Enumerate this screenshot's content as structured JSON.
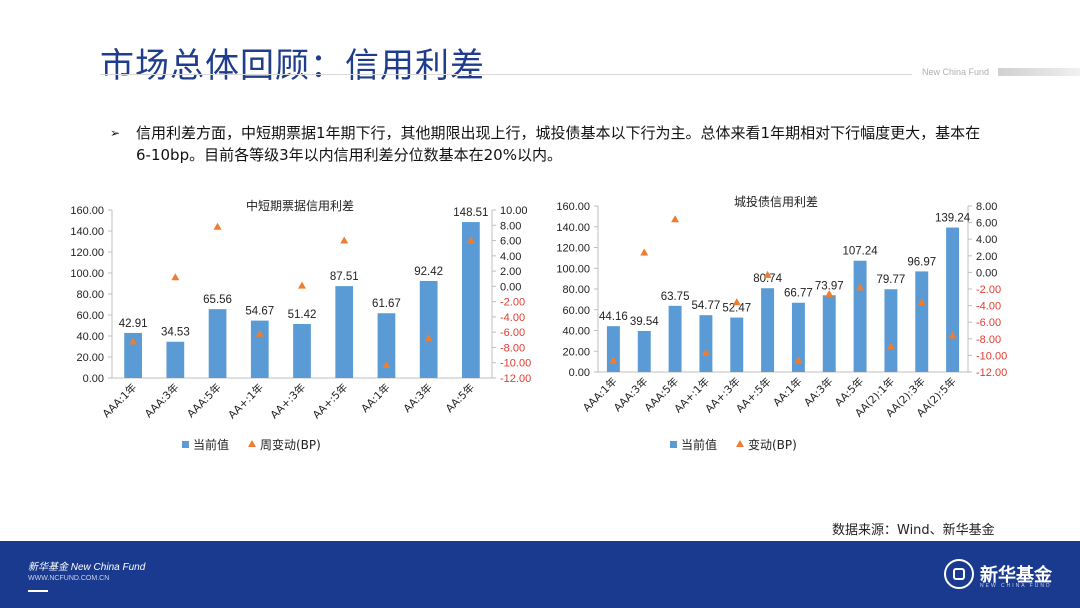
{
  "slide": {
    "title": "市场总体回顾：信用利差",
    "brand_small": "New China Fund",
    "bullet_marker": "➢",
    "bullet": "信用利差方面，中短期票据1年期下行，其他期限出现上行，城投债基本以下行为主。总体来看1年期相对下行幅度更大，基本在6-10bp。目前各等级3年以内信用利差分位数基本在20%以内。",
    "source": "数据来源：Wind、新华基金"
  },
  "footer": {
    "brand": "新华基金 New China Fund",
    "url": "WWW.NCFUND.COM.CN",
    "name": "新华基金",
    "sub": "NEW CHINA FUND"
  },
  "colors": {
    "bar": "#5b9bd5",
    "marker": "#ed7d31",
    "right_axis_neg": "#e03c31",
    "title": "#1f3d8c",
    "footer": "#1a3a8f"
  },
  "chart_data": [
    {
      "type": "bar",
      "title": "中短期票据信用利差",
      "categories": [
        "AAA:1年",
        "AAA:3年",
        "AAA:5年",
        "AA+:1年",
        "AA+:3年",
        "AA+:5年",
        "AA:1年",
        "AA:3年",
        "AA:5年"
      ],
      "series": [
        {
          "name": "当前值",
          "type": "bar",
          "axis": "left",
          "values": [
            42.91,
            34.53,
            65.56,
            54.67,
            51.42,
            87.51,
            61.67,
            92.42,
            148.51
          ]
        },
        {
          "name": "周变动(BP)",
          "type": "scatter",
          "axis": "right",
          "values": [
            -7.2,
            1.2,
            7.8,
            -6.2,
            0.1,
            6.0,
            -10.3,
            -6.8,
            6.0
          ]
        }
      ],
      "ylim_left": [
        0,
        160
      ],
      "yticks_left": [
        "0.00",
        "20.00",
        "40.00",
        "60.00",
        "80.00",
        "100.00",
        "120.00",
        "140.00",
        "160.00"
      ],
      "ylim_right": [
        -12,
        10
      ],
      "yticks_right": [
        "-12.00",
        "-10.00",
        "-8.00",
        "-6.00",
        "-4.00",
        "-2.00",
        "0.00",
        "2.00",
        "4.00",
        "6.00",
        "8.00",
        "10.00"
      ],
      "legend": [
        "当前值",
        "周变动(BP)"
      ],
      "legend_position": "bottom"
    },
    {
      "type": "bar",
      "title": "城投债信用利差",
      "categories": [
        "AAA:1年",
        "AAA:3年",
        "AAA:5年",
        "AA+:1年",
        "AA+:3年",
        "AA+:5年",
        "AA:1年",
        "AA:3年",
        "AA:5年",
        "AA(2):1年",
        "AA(2):3年",
        "AA(2):5年"
      ],
      "series": [
        {
          "name": "当前值",
          "type": "bar",
          "axis": "left",
          "values": [
            44.16,
            39.54,
            63.75,
            54.77,
            52.47,
            80.74,
            66.77,
            73.97,
            107.24,
            79.77,
            96.97,
            139.24
          ]
        },
        {
          "name": "变动(BP)",
          "type": "scatter",
          "axis": "right",
          "values": [
            -10.6,
            2.4,
            6.4,
            -9.7,
            -3.6,
            -0.3,
            -10.6,
            -2.6,
            -1.8,
            -8.9,
            -3.6,
            -7.6
          ]
        }
      ],
      "ylim_left": [
        0,
        160
      ],
      "yticks_left": [
        "0.00",
        "20.00",
        "40.00",
        "60.00",
        "80.00",
        "100.00",
        "120.00",
        "140.00",
        "160.00"
      ],
      "ylim_right": [
        -12,
        8
      ],
      "yticks_right": [
        "-12.00",
        "-10.00",
        "-8.00",
        "-6.00",
        "-4.00",
        "-2.00",
        "0.00",
        "2.00",
        "4.00",
        "6.00",
        "8.00"
      ],
      "legend": [
        "当前值",
        "变动(BP)"
      ],
      "legend_position": "bottom"
    }
  ]
}
